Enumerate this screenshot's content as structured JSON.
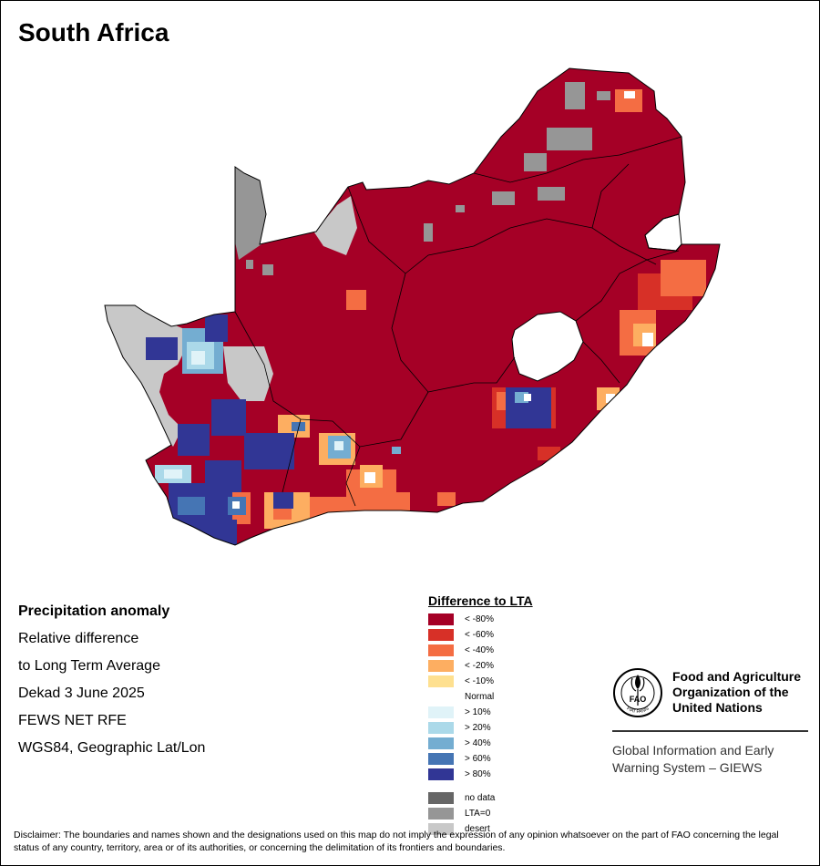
{
  "title": "South Africa",
  "info": {
    "line1": "Precipitation anomaly",
    "line2": "Relative difference",
    "line3": "to Long Term Average",
    "line4": "Dekad 3 June 2025",
    "line5": "FEWS NET RFE",
    "line6": "WGS84, Geographic Lat/Lon"
  },
  "legend": {
    "title": "Difference to LTA",
    "items": [
      {
        "label": "< -80%",
        "color": "#a50026"
      },
      {
        "label": "< -60%",
        "color": "#d73027"
      },
      {
        "label": "< -40%",
        "color": "#f46d43"
      },
      {
        "label": "< -20%",
        "color": "#fdae61"
      },
      {
        "label": "< -10%",
        "color": "#fee090"
      },
      {
        "label": "Normal",
        "color": "#ffffff"
      },
      {
        "label": "> 10%",
        "color": "#e0f3f8"
      },
      {
        "label": "> 20%",
        "color": "#abd9e9"
      },
      {
        "label": "> 40%",
        "color": "#74add1"
      },
      {
        "label": "> 60%",
        "color": "#4575b4"
      },
      {
        "label": "> 80%",
        "color": "#313695"
      }
    ],
    "extra": [
      {
        "label": "no data",
        "color": "#666666"
      },
      {
        "label": "LTA=0",
        "color": "#969696"
      },
      {
        "label": "desert",
        "color": "#c8c8c8"
      }
    ]
  },
  "logo": {
    "emblem_text": "FIAT PANIS",
    "letters": "FAO",
    "org_name": "Food and Agriculture Organization of the United Nations",
    "system_name": "Global Information and Early Warning System – GIEWS"
  },
  "disclaimer": "Disclaimer: The boundaries and names shown and the designations used on this map do not imply the expression of any opinion whatsoever on the part of FAO concerning the legal status of any country, territory, area or of its authorities, or concerning the delimitation of its frontiers and boundaries.",
  "colors": {
    "dominant": "#a50026",
    "background": "#ffffff",
    "border": "#000000"
  }
}
